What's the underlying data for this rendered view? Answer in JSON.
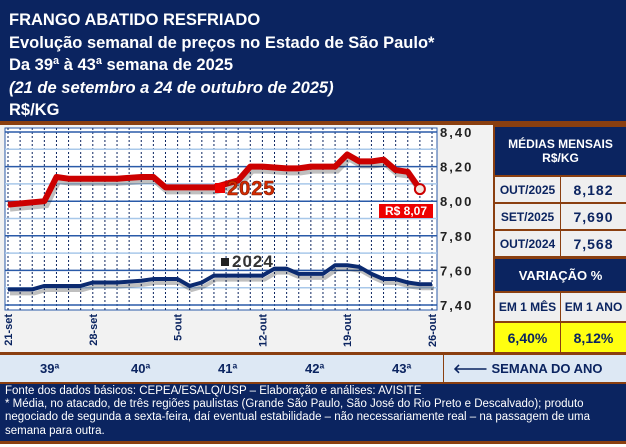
{
  "header": {
    "line1": "FRANGO ABATIDO RESFRIADO",
    "line2": "Evolução semanal de preços no Estado de São Paulo*",
    "line3": "Da 39ª à 43ª semana de 2025",
    "line4": "(21 de setembro a 24 de outubro de 2025)",
    "line5": "R$/KG"
  },
  "chart_data": {
    "type": "line",
    "title": "FRANGO ABATIDO RESFRIADO",
    "ylabel": "R$/KG",
    "ylim": [
      7.4,
      8.4
    ],
    "yticks": [
      "8,40",
      "8,20",
      "8,00",
      "7,80",
      "7,60",
      "7,40"
    ],
    "xticks": [
      {
        "label": "21-set",
        "day": 0
      },
      {
        "label": "28-set",
        "day": 7
      },
      {
        "label": "5-out",
        "day": 14
      },
      {
        "label": "12-out",
        "day": 21
      },
      {
        "label": "19-out",
        "day": 28
      },
      {
        "label": "26-out",
        "day": 35
      }
    ],
    "series": [
      {
        "name": "2025",
        "color": "#cc0000",
        "days": [
          0,
          3,
          4,
          5,
          7,
          9,
          11,
          12,
          13,
          15,
          17,
          18,
          19,
          20,
          21,
          23,
          24,
          25,
          26,
          27,
          28,
          29,
          30,
          31,
          32,
          33,
          34
        ],
        "values": [
          7.98,
          8.0,
          8.14,
          8.13,
          8.13,
          8.13,
          8.14,
          8.14,
          8.08,
          8.08,
          8.08,
          8.1,
          8.12,
          8.2,
          8.2,
          8.19,
          8.19,
          8.2,
          8.2,
          8.2,
          8.27,
          8.23,
          8.23,
          8.24,
          8.18,
          8.17,
          8.07
        ]
      },
      {
        "name": "2024",
        "color": "#0b2a70",
        "days": [
          0,
          2,
          3,
          4,
          6,
          7,
          8,
          9,
          11,
          12,
          13,
          14,
          15,
          16,
          17,
          18,
          19,
          21,
          22,
          23,
          24,
          25,
          26,
          27,
          28,
          29,
          30,
          31,
          32,
          33,
          34,
          35
        ],
        "values": [
          7.49,
          7.49,
          7.51,
          7.51,
          7.51,
          7.53,
          7.53,
          7.53,
          7.54,
          7.55,
          7.55,
          7.55,
          7.51,
          7.53,
          7.57,
          7.57,
          7.57,
          7.57,
          7.61,
          7.61,
          7.58,
          7.58,
          7.58,
          7.63,
          7.63,
          7.62,
          7.58,
          7.55,
          7.55,
          7.53,
          7.52,
          7.52
        ]
      }
    ],
    "last_label": "R$ 8,07"
  },
  "panel": {
    "title": "MÉDIAS MENSAIS R$/KG",
    "rows": [
      {
        "label": "OUT/2025",
        "value": "8,182"
      },
      {
        "label": "SET/2025",
        "value": "7,690"
      },
      {
        "label": "OUT/2024",
        "value": "7,568"
      }
    ],
    "var_title": "VARIAÇÃO %",
    "var_headers": [
      "EM 1 MÊS",
      "EM 1 ANO"
    ],
    "var_values": [
      "6,40%",
      "8,12%"
    ]
  },
  "weeks": {
    "labels": [
      "39ª",
      "40ª",
      "41ª",
      "42ª",
      "43ª"
    ],
    "axis_label": "🡐 SEMANA DO ANO"
  },
  "footer": {
    "line1": "Fonte dos dados básicos: CEPEA/ESALQ/USP – Elaboração e análises: AVISITE",
    "line2": "* Média, no atacado, de três regiões paulistas (Grande São Paulo, São José do Rio Preto e Descalvado); produto negociado de segunda a sexta-feira, daí eventual estabilidade – não necessariamente real – na passagem de uma semana para outra."
  }
}
